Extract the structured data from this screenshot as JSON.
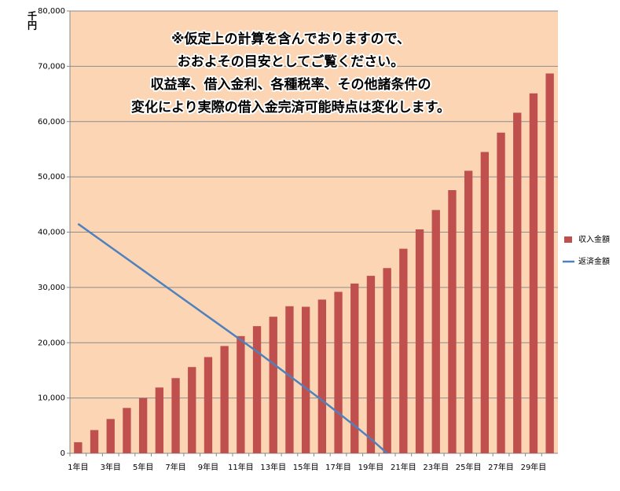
{
  "chart_data": {
    "type": "bar",
    "y_axis_label": "千円",
    "annotation": [
      "※仮定上の計算を含んでおりますので、",
      "おおよその目安としてご覧ください。",
      "収益率、借入金利、各種税率、その他諸条件の",
      "変化により実際の借入金完済可能時点は変化します。"
    ],
    "categories": [
      "1年目",
      null,
      "3年目",
      null,
      "5年目",
      null,
      "7年目",
      null,
      "9年目",
      null,
      "11年目",
      null,
      "13年目",
      null,
      "15年目",
      null,
      "17年目",
      null,
      "19年目",
      null,
      "21年目",
      null,
      "23年目",
      null,
      "25年目",
      null,
      "27年目",
      null,
      "29年目",
      null
    ],
    "series": [
      {
        "name": "収入金額",
        "color": "#c0504d",
        "type": "bar",
        "values": [
          2000,
          4200,
          6200,
          8200,
          10000,
          11900,
          13600,
          15600,
          17400,
          19400,
          21200,
          23000,
          24700,
          26600,
          26500,
          27800,
          29200,
          30700,
          32100,
          33500,
          37000,
          40500,
          44000,
          47600,
          51100,
          54500,
          58000,
          61600,
          65100,
          68700
        ]
      },
      {
        "name": "返済金額",
        "color": "#4f81bd",
        "type": "line",
        "values": [
          41500,
          39400,
          37300,
          35200,
          33100,
          31000,
          28900,
          26800,
          24700,
          22600,
          20500,
          18400,
          16200,
          14000,
          11800,
          9600,
          7300,
          5000,
          2600,
          0,
          null,
          null,
          null,
          null,
          null,
          null,
          null,
          null,
          null,
          null
        ]
      }
    ],
    "ylim": [
      0,
      80000
    ],
    "yticks": [
      0,
      {
        "value": 10000,
        "label": "10,000"
      },
      {
        "value": 20000,
        "label": "20,000"
      },
      {
        "value": 30000,
        "label": "30,000"
      },
      {
        "value": 40000,
        "label": "40,000"
      },
      {
        "value": 50000,
        "label": "50,000"
      },
      {
        "value": 60000,
        "label": "60,000"
      },
      {
        "value": 70000,
        "label": "70,000"
      },
      {
        "value": 80000,
        "label": "80,000"
      }
    ],
    "grid": true,
    "plot_background": "#fcd5b4",
    "legend": "right"
  }
}
